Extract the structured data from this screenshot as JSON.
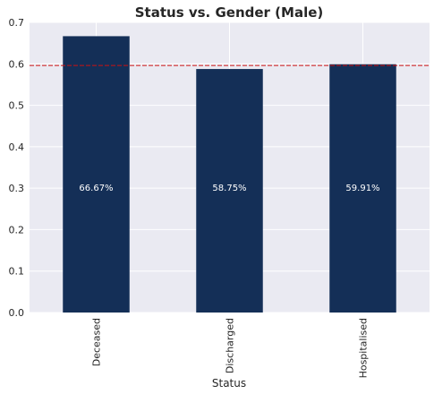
{
  "chart_data": {
    "type": "bar",
    "title": "Status vs. Gender (Male)",
    "xlabel": "Status",
    "ylabel": "",
    "categories": [
      "Deceased",
      "Discharged",
      "Hospitalised"
    ],
    "values": [
      0.6667,
      0.5875,
      0.5991
    ],
    "data_labels": [
      "66.67%",
      "58.75%",
      "59.91%"
    ],
    "ylim": [
      0,
      0.7
    ],
    "yticks": [
      "0.0",
      "0.1",
      "0.2",
      "0.3",
      "0.4",
      "0.5",
      "0.6",
      "0.7"
    ],
    "reference_line": {
      "value": 0.596,
      "style": "dashed"
    },
    "grid": true,
    "legend": "none",
    "colors": {
      "bar": "#142f57",
      "background": "#eaeaf2",
      "grid": "#ffffff",
      "reference_line": "#cc1111"
    }
  }
}
